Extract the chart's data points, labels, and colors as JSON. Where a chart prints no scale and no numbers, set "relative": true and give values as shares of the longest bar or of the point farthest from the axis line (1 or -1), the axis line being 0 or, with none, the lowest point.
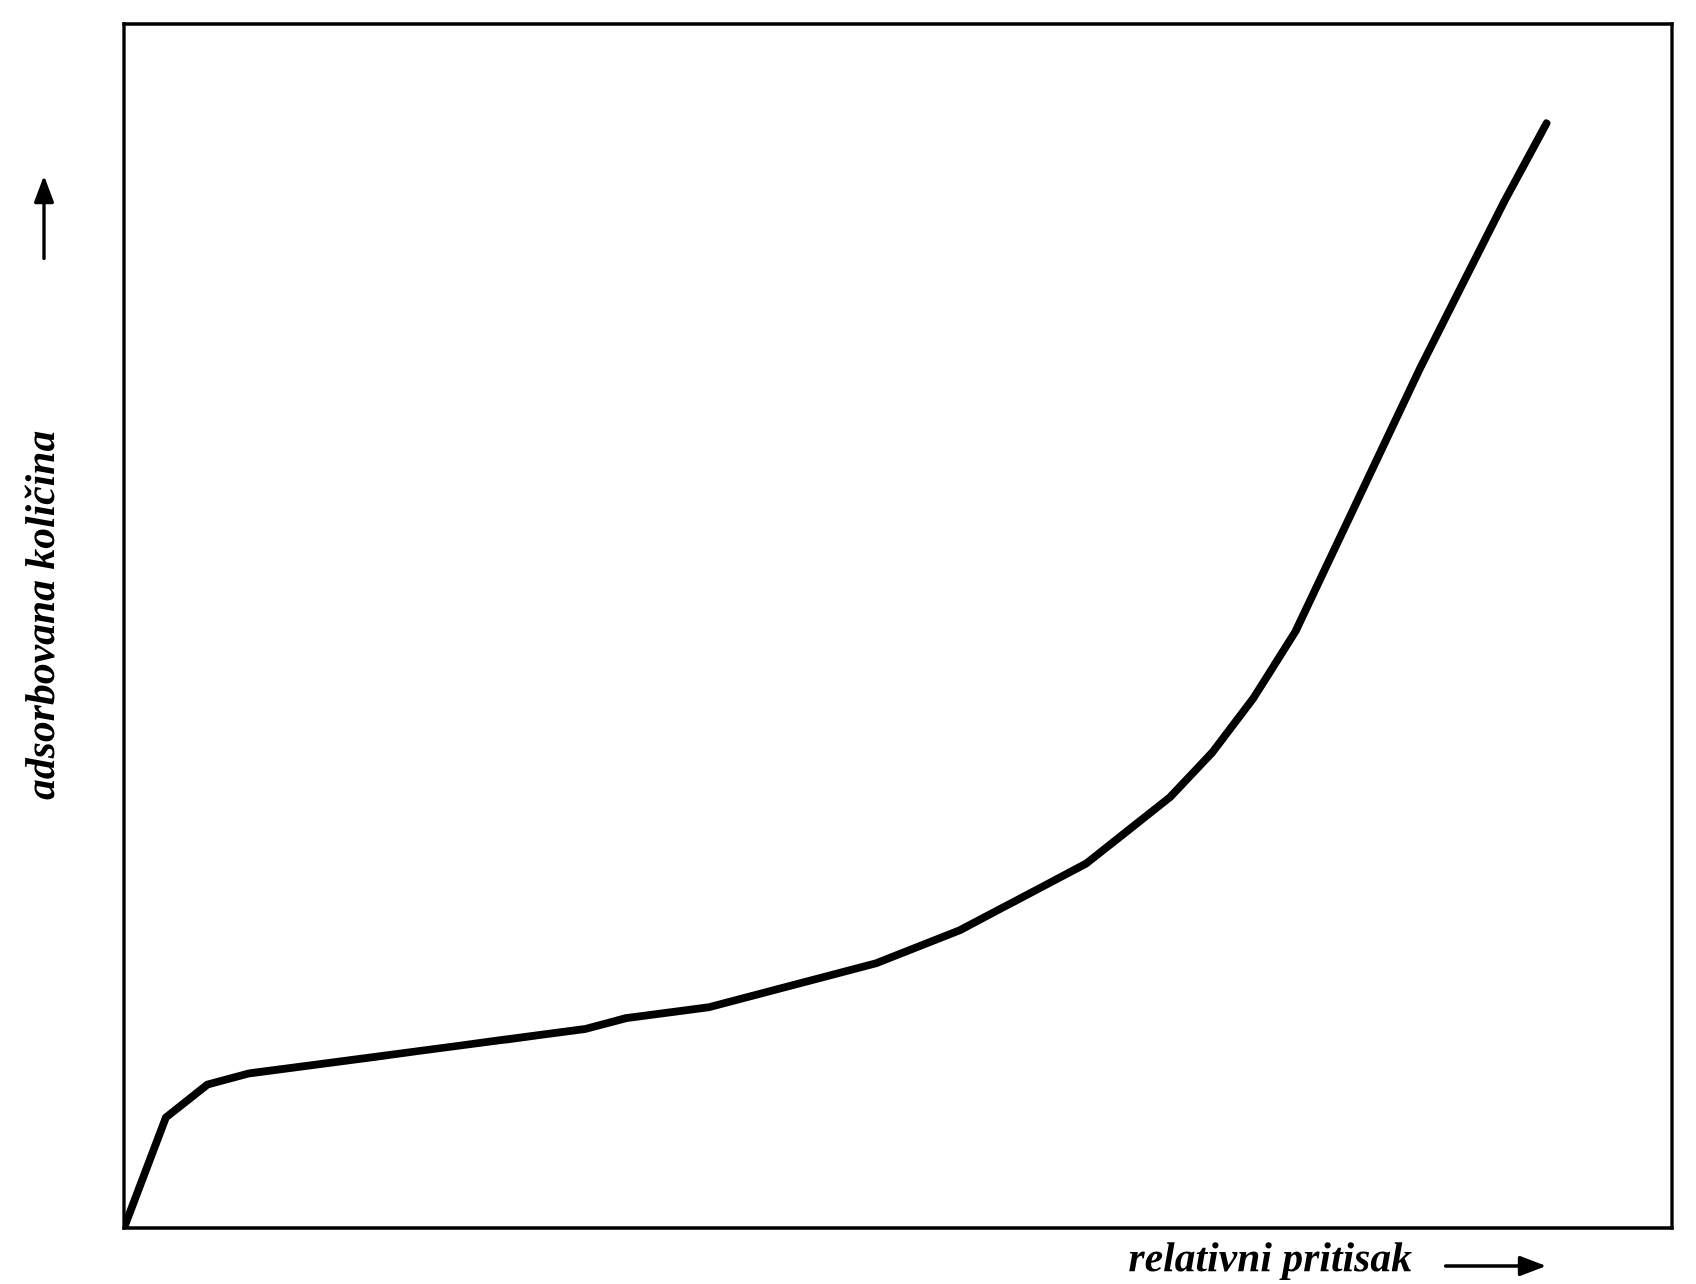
{
  "chart_data": {
    "type": "line",
    "relative": true,
    "xlabel": "relativni pritisak",
    "ylabel": "adsorbovana količina",
    "categories": [
      null,
      null,
      null,
      null,
      null,
      null,
      null,
      null,
      null,
      null,
      null,
      null,
      null,
      null,
      null,
      null,
      null,
      null,
      null,
      null,
      null,
      null,
      null,
      null,
      null,
      null,
      null,
      null,
      null,
      null,
      null,
      null,
      null,
      null,
      null,
      null,
      null,
      null
    ],
    "series": [
      {
        "color": "#000000",
        "values": [
          0,
          0.1,
          0.13,
          0.14,
          0.145,
          0.15,
          0.155,
          0.16,
          0.165,
          0.17,
          0.175,
          0.18,
          0.19,
          0.195,
          0.2,
          0.21,
          0.22,
          0.23,
          0.24,
          0.255,
          0.27,
          0.29,
          0.31,
          0.33,
          0.36,
          0.39,
          0.43,
          0.48,
          0.54,
          0.62,
          0.7,
          0.78,
          0.855,
          0.93,
          1.0,
          null,
          null,
          null
        ]
      }
    ],
    "grid": false,
    "legend": false,
    "marker": "none",
    "line_style": "solid"
  }
}
